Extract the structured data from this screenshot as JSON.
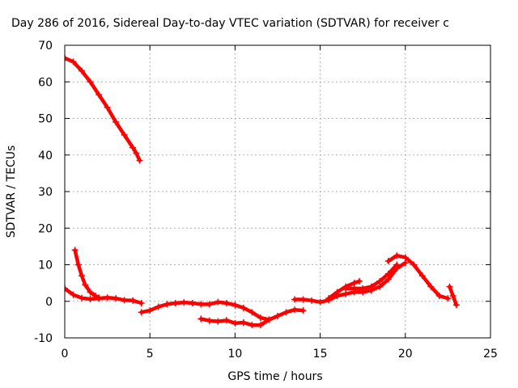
{
  "chart_data": {
    "type": "scatter",
    "title": "Day 286 of 2016, Sidereal Day-to-day VTEC variation (SDTVAR) for receiver c",
    "xlabel": "GPS time / hours",
    "ylabel": "SDTVAR / TECUs",
    "xlim": [
      0,
      25
    ],
    "ylim": [
      -10,
      70
    ],
    "xticks": [
      0,
      5,
      10,
      15,
      20,
      25
    ],
    "yticks": [
      -10,
      0,
      10,
      20,
      30,
      40,
      50,
      60,
      70
    ],
    "grid": true,
    "marker": "+",
    "color": "#ff0000",
    "series": [
      {
        "x": [
          0.0,
          0.5,
          1.0,
          1.5,
          2.0,
          2.5,
          3.0,
          3.5,
          4.0,
          4.2,
          4.4
        ],
        "y": [
          66.5,
          65.5,
          63.0,
          60.0,
          56.5,
          53.0,
          49.0,
          45.5,
          42.0,
          40.5,
          38.5
        ]
      },
      {
        "x": [
          0.0,
          0.5,
          1.0,
          1.5,
          2.0,
          2.5,
          3.0,
          3.5,
          4.0,
          4.5
        ],
        "y": [
          3.5,
          1.8,
          0.9,
          0.6,
          0.8,
          1.0,
          0.8,
          0.3,
          0.2,
          -0.5
        ]
      },
      {
        "x": [
          0.6,
          0.8,
          1.0,
          1.2,
          1.5,
          1.8,
          2.0
        ],
        "y": [
          14.0,
          10.0,
          7.0,
          4.5,
          2.5,
          1.5,
          1.0
        ]
      },
      {
        "x": [
          4.5,
          5.0,
          5.5,
          6.0,
          6.5,
          7.0,
          7.5,
          8.0,
          8.5,
          9.0,
          9.5,
          10.0,
          10.5,
          11.0,
          11.5,
          12.0
        ],
        "y": [
          -3.0,
          -2.5,
          -1.5,
          -0.8,
          -0.5,
          -0.3,
          -0.5,
          -0.8,
          -0.8,
          -0.2,
          -0.5,
          -1.0,
          -1.8,
          -3.0,
          -4.5,
          -5.0
        ]
      },
      {
        "x": [
          8.0,
          8.5,
          9.0,
          9.5,
          10.0,
          10.5,
          11.0,
          11.5,
          12.0,
          12.5,
          13.0,
          13.5,
          14.0
        ],
        "y": [
          -4.8,
          -5.3,
          -5.5,
          -5.2,
          -6.0,
          -5.8,
          -6.5,
          -6.5,
          -5.0,
          -4.0,
          -3.0,
          -2.3,
          -2.5
        ]
      },
      {
        "x": [
          13.5,
          14.0,
          14.5,
          15.0,
          15.5,
          16.0,
          16.5,
          17.0,
          17.5,
          18.0,
          18.5,
          19.0,
          19.5,
          20.0
        ],
        "y": [
          0.5,
          0.5,
          0.2,
          -0.2,
          0.3,
          1.5,
          2.0,
          2.5,
          2.5,
          3.0,
          4.0,
          6.0,
          9.0,
          10.5
        ]
      },
      {
        "x": [
          15.5,
          16.0,
          16.5,
          17.0,
          17.3
        ],
        "y": [
          0.8,
          2.5,
          4.0,
          5.0,
          5.5
        ]
      },
      {
        "x": [
          16.5,
          17.0,
          17.5,
          18.0,
          18.5,
          19.0,
          19.5
        ],
        "y": [
          3.5,
          3.5,
          3.5,
          4.0,
          5.5,
          7.5,
          10.0
        ]
      },
      {
        "x": [
          19.0,
          19.5,
          20.0,
          20.5,
          21.0,
          21.5,
          22.0,
          22.5
        ],
        "y": [
          11.0,
          12.5,
          12.0,
          10.0,
          7.0,
          4.0,
          1.5,
          0.8
        ]
      },
      {
        "x": [
          22.6,
          22.8,
          23.0
        ],
        "y": [
          4.0,
          1.5,
          -1.0
        ]
      }
    ]
  }
}
